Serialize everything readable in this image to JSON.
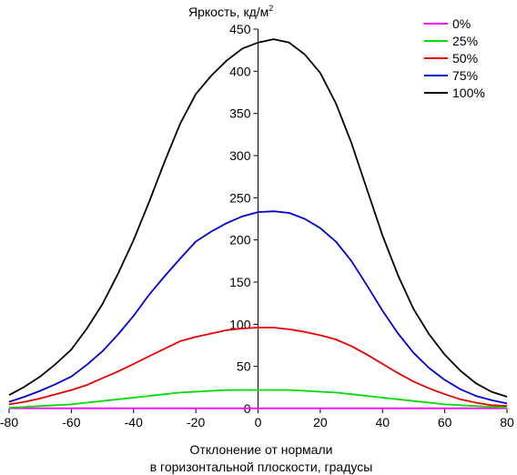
{
  "chart_data": {
    "type": "line",
    "title": "Яркость, кд/м",
    "title_superscript": "2",
    "xlabel_line1": "Отклонение от нормали",
    "xlabel_line2": "в горизонтальной плоскости, градусы",
    "xlim": [
      -80,
      80
    ],
    "ylim": [
      0,
      450
    ],
    "xticks": [
      -80,
      -60,
      -40,
      -20,
      0,
      20,
      40,
      60,
      80
    ],
    "yticks": [
      0,
      50,
      100,
      150,
      200,
      250,
      300,
      350,
      400,
      450
    ],
    "grid": false,
    "legend_position": "top-right",
    "x": [
      -80,
      -75,
      -70,
      -65,
      -60,
      -55,
      -50,
      -45,
      -40,
      -35,
      -30,
      -25,
      -20,
      -15,
      -10,
      -5,
      0,
      5,
      10,
      15,
      20,
      25,
      30,
      35,
      40,
      45,
      50,
      55,
      60,
      65,
      70,
      75,
      80
    ],
    "series": [
      {
        "name": "0%",
        "color": "#ff00ff",
        "values": [
          0.3,
          0.3,
          0.3,
          0.3,
          0.3,
          0.3,
          0.3,
          0.3,
          0.3,
          0.3,
          0.3,
          0.3,
          0.3,
          0.3,
          0.3,
          0.3,
          0.3,
          0.3,
          0.3,
          0.3,
          0.3,
          0.3,
          0.3,
          0.3,
          0.3,
          0.3,
          0.3,
          0.3,
          0.3,
          0.3,
          0.3,
          0.3,
          0.3
        ]
      },
      {
        "name": "25%",
        "color": "#00dd00",
        "values": [
          1,
          2,
          3,
          4,
          5,
          7,
          9,
          11,
          13,
          15,
          17,
          19,
          20,
          21,
          22,
          22,
          22,
          22,
          22,
          21,
          20,
          19,
          17,
          15,
          13,
          11,
          9,
          7,
          5,
          4,
          3,
          2,
          1
        ]
      },
      {
        "name": "50%",
        "color": "#e60000",
        "values": [
          5,
          8,
          12,
          17,
          22,
          28,
          36,
          44,
          53,
          62,
          71,
          80,
          85,
          89,
          93,
          95,
          96,
          96,
          94,
          91,
          87,
          82,
          74,
          64,
          53,
          42,
          32,
          24,
          17,
          11,
          7,
          4,
          3
        ]
      },
      {
        "name": "75%",
        "color": "#0000d0",
        "values": [
          8,
          14,
          21,
          29,
          38,
          52,
          68,
          88,
          110,
          135,
          157,
          178,
          198,
          210,
          220,
          228,
          233,
          234,
          232,
          225,
          214,
          198,
          175,
          146,
          116,
          89,
          66,
          48,
          34,
          23,
          15,
          10,
          6
        ]
      },
      {
        "name": "100%",
        "color": "#000000",
        "values": [
          16,
          26,
          38,
          53,
          70,
          95,
          124,
          160,
          200,
          245,
          293,
          338,
          373,
          395,
          413,
          427,
          434,
          438,
          434,
          420,
          398,
          362,
          315,
          260,
          205,
          158,
          118,
          88,
          64,
          45,
          30,
          20,
          14
        ]
      }
    ]
  }
}
